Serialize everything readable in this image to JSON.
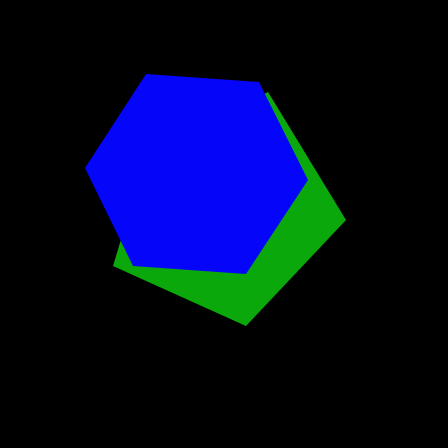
{
  "canvas": {
    "background": "#000000"
  },
  "shapes": [
    {
      "name": "green-pentagon",
      "kind": "pentagon",
      "color": "#0aa80a"
    },
    {
      "name": "blue-hexagon",
      "kind": "hexagon",
      "color": "#0505fa"
    }
  ]
}
